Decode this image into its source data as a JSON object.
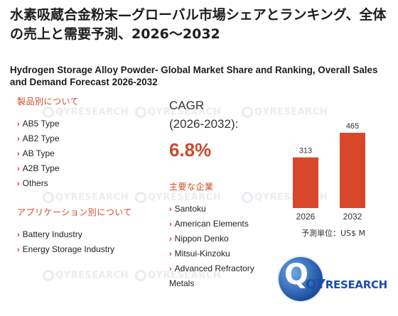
{
  "title_jp": "水素吸蔵合金粉末—グローバル市場シェアとランキング、全体の売上と需要予測、2026～2032",
  "title_en": "Hydrogen Storage Alloy Powder- Global Market Share and Ranking, Overall Sales and Demand Forecast 2026-2032",
  "product_section": {
    "heading": "製品別について",
    "items": [
      "AB5 Type",
      "AB2 Type",
      "AB Type",
      "A2B Type",
      "Others"
    ]
  },
  "application_section": {
    "heading": "アプリケーション別について",
    "items": [
      "Battery Industry",
      "Energy Storage Industry"
    ]
  },
  "cagr": {
    "label": "CAGR",
    "period": "(2026-2032):",
    "value": "6.8%"
  },
  "players_section": {
    "heading": "主要な企業",
    "items": [
      "Santoku",
      "American Elements",
      "Nippon Denko",
      "Mitsui-Kinzoku",
      "Advanced Refractory Metals"
    ]
  },
  "chart_data": {
    "type": "bar",
    "categories": [
      "2026",
      "2032"
    ],
    "values": [
      313,
      465
    ],
    "value_labels": [
      "313",
      "465"
    ],
    "bar_color": "#d8472a",
    "ylim": [
      0,
      465
    ]
  },
  "unit_label": "予測単位：US$ M",
  "logo": {
    "text_a": "QY",
    "text_b": "RESEARCH"
  },
  "watermark": "QYRESEARCH",
  "colors": {
    "accent": "#c9492a",
    "brand": "#1c4fa6"
  }
}
